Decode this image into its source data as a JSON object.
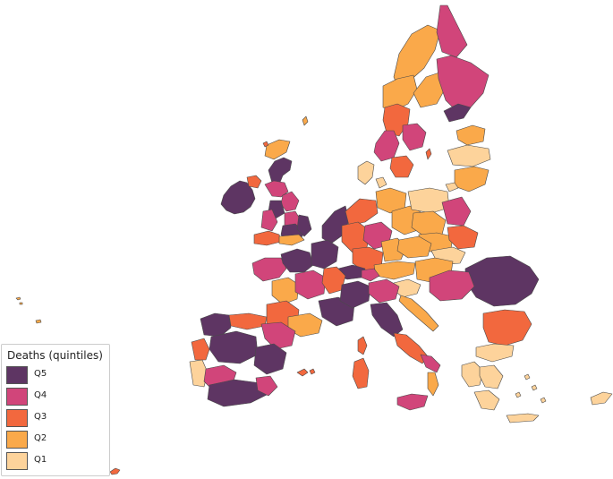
{
  "map": {
    "name": "europe-deaths-choropleth",
    "colors": {
      "Q5": "#5e3563",
      "Q4": "#d1457a",
      "Q3": "#f2683e",
      "Q2": "#faa94a",
      "Q1": "#fdd39b",
      "border": "#4a4a4a",
      "background": "#ffffff"
    }
  },
  "legend": {
    "title": "Deaths (quintiles)",
    "items": [
      {
        "label": "Q5",
        "color": "#5e3563"
      },
      {
        "label": "Q4",
        "color": "#d1457a"
      },
      {
        "label": "Q3",
        "color": "#f2683e"
      },
      {
        "label": "Q2",
        "color": "#faa94a"
      },
      {
        "label": "Q1",
        "color": "#fdd39b"
      }
    ]
  }
}
